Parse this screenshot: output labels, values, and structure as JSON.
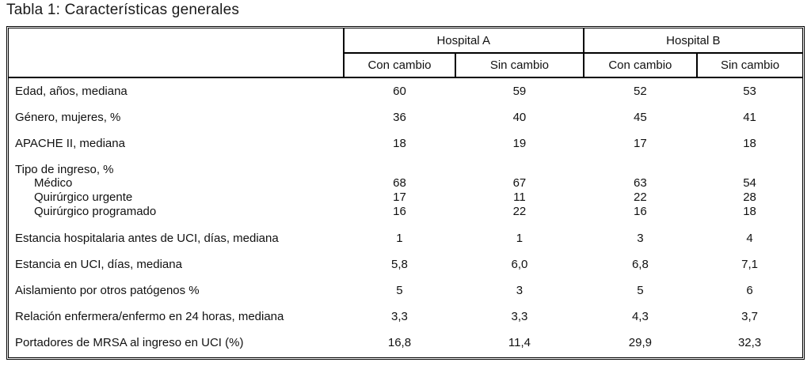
{
  "title": "Tabla 1: Características generales",
  "table": {
    "groups": [
      "Hospital A",
      "Hospital B"
    ],
    "sub_headers": [
      "Con cambio",
      "Sin cambio",
      "Con cambio",
      "Sin cambio"
    ],
    "rows": [
      {
        "label": "Edad, años, mediana",
        "values": [
          "60",
          "59",
          "52",
          "53"
        ]
      },
      {
        "label": "Género, mujeres, %",
        "values": [
          "36",
          "40",
          "45",
          "41"
        ]
      },
      {
        "label": "APACHE II, mediana",
        "values": [
          "18",
          "19",
          "17",
          "18"
        ]
      },
      {
        "label": "Tipo de ingreso, %",
        "values": [
          "",
          "",
          "",
          ""
        ]
      },
      {
        "label": "Médico",
        "values": [
          "68",
          "67",
          "63",
          "54"
        ]
      },
      {
        "label": "Quirúrgico urgente",
        "values": [
          "17",
          "11",
          "22",
          "28"
        ]
      },
      {
        "label": "Quirúrgico programado",
        "values": [
          "16",
          "22",
          "16",
          "18"
        ]
      },
      {
        "label": "Estancia hospitalaria antes de UCI, días, mediana",
        "values": [
          "1",
          "1",
          "3",
          "4"
        ]
      },
      {
        "label": "Estancia en UCI, días, mediana",
        "values": [
          "5,8",
          "6,0",
          "6,8",
          "7,1"
        ]
      },
      {
        "label": "Aislamiento por otros patógenos %",
        "values": [
          "5",
          "3",
          "5",
          "6"
        ]
      },
      {
        "label": "Relación enfermera/enfermo en 24 horas, mediana",
        "values": [
          "3,3",
          "3,3",
          "4,3",
          "3,7"
        ]
      },
      {
        "label": "Portadores de MRSA al ingreso en UCI (%)",
        "values": [
          "16,8",
          "11,4",
          "29,9",
          "32,3"
        ]
      }
    ]
  }
}
